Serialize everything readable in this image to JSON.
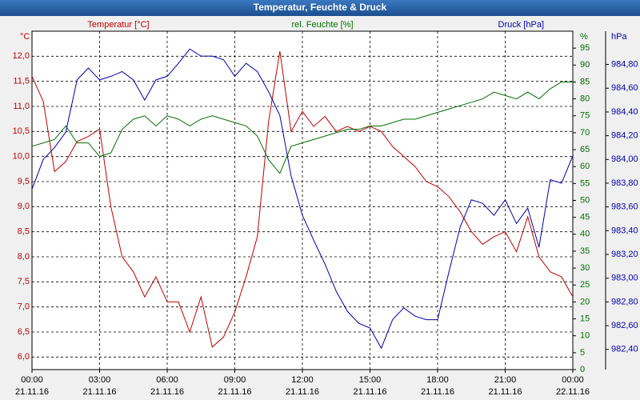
{
  "chart_data": {
    "type": "line",
    "title": "Temperatur, Feuchte & Druck",
    "y_unit": "°C",
    "y2_unit": "%",
    "y3_unit": "hPa",
    "x": [
      0,
      0.5,
      1,
      1.5,
      2,
      2.5,
      3,
      3.5,
      4,
      4.5,
      5,
      5.5,
      6,
      6.5,
      7,
      7.5,
      8,
      8.5,
      9,
      9.5,
      10,
      10.5,
      11,
      11.5,
      12,
      12.5,
      13,
      13.5,
      14,
      14.5,
      15,
      15.5,
      16,
      16.5,
      17,
      17.5,
      18,
      18.5,
      19,
      19.5,
      20,
      20.5,
      21,
      21.5,
      22,
      22.5,
      23,
      23.5,
      24
    ],
    "xlim": [
      0,
      24
    ],
    "xticks": [
      {
        "value": 0,
        "label": "00:00"
      },
      {
        "value": 3,
        "label": "03:00"
      },
      {
        "value": 6,
        "label": "06:00"
      },
      {
        "value": 9,
        "label": "09:00"
      },
      {
        "value": 12,
        "label": "12:00"
      },
      {
        "value": 15,
        "label": "15:00"
      },
      {
        "value": 18,
        "label": "18:00"
      },
      {
        "value": 21,
        "label": "21:00"
      },
      {
        "value": 24,
        "label": "00:00"
      }
    ],
    "xtick_dates": [
      "21.11.16",
      "21.11.16",
      "21.11.16",
      "21.11.16",
      "21.11.16",
      "21.11.16",
      "21.11.16",
      "21.11.16",
      "22.11.16"
    ],
    "ylim": [
      5.75,
      12.5
    ],
    "yticks": [
      {
        "value": 6,
        "label": "6,0"
      },
      {
        "value": 6.5,
        "label": "6,5"
      },
      {
        "value": 7,
        "label": "7,0"
      },
      {
        "value": 7.5,
        "label": "7,5"
      },
      {
        "value": 8,
        "label": "8,0"
      },
      {
        "value": 8.5,
        "label": "8,5"
      },
      {
        "value": 9,
        "label": "9,0"
      },
      {
        "value": 9.5,
        "label": "9,5"
      },
      {
        "value": 10,
        "label": "10,0"
      },
      {
        "value": 10.5,
        "label": "10,5"
      },
      {
        "value": 11,
        "label": "11,0"
      },
      {
        "value": 11.5,
        "label": "11,5"
      },
      {
        "value": 12,
        "label": "12,0"
      }
    ],
    "y2lim": [
      0,
      100
    ],
    "y2ticks": [
      0,
      5,
      10,
      15,
      20,
      25,
      30,
      35,
      40,
      45,
      50,
      55,
      60,
      65,
      70,
      75,
      80,
      85,
      90,
      95
    ],
    "y3lim": [
      982.23,
      985.08
    ],
    "y3ticks": [
      {
        "value": 982.4,
        "label": "982,40"
      },
      {
        "value": 982.6,
        "label": "982,60"
      },
      {
        "value": 982.8,
        "label": "982,80"
      },
      {
        "value": 983.0,
        "label": "983,00"
      },
      {
        "value": 983.2,
        "label": "983,20"
      },
      {
        "value": 983.4,
        "label": "983,40"
      },
      {
        "value": 983.6,
        "label": "983,60"
      },
      {
        "value": 983.8,
        "label": "983,80"
      },
      {
        "value": 984.0,
        "label": "984,00"
      },
      {
        "value": 984.2,
        "label": "984,20"
      },
      {
        "value": 984.4,
        "label": "984,40"
      },
      {
        "value": 984.6,
        "label": "984,60"
      },
      {
        "value": 984.8,
        "label": "984,80"
      }
    ],
    "grid": true,
    "series": [
      {
        "name": "Temperatur [°C]",
        "color": "#c00000",
        "axis": "y",
        "values": [
          11.6,
          11.1,
          9.7,
          9.9,
          10.3,
          10.4,
          10.55,
          9.0,
          8.0,
          7.7,
          7.2,
          7.6,
          7.1,
          7.1,
          6.5,
          7.2,
          6.2,
          6.4,
          6.9,
          7.6,
          8.4,
          10.7,
          12.1,
          10.5,
          10.9,
          10.6,
          10.8,
          10.5,
          10.6,
          10.5,
          10.6,
          10.5,
          10.2,
          10.0,
          9.8,
          9.5,
          9.4,
          9.2,
          8.9,
          8.5,
          8.25,
          8.4,
          8.5,
          8.1,
          8.8,
          8.0,
          7.7,
          7.6,
          7.2
        ]
      },
      {
        "name": "rel. Feuchte [%]",
        "color": "#007000",
        "axis": "y2",
        "values": [
          66,
          67,
          68,
          72,
          67,
          67,
          63,
          64,
          71,
          74,
          75,
          72,
          75,
          74,
          72,
          74,
          75,
          74,
          73,
          72,
          69,
          62,
          58,
          66,
          67,
          68,
          69,
          70,
          71,
          71,
          72,
          72,
          73,
          74,
          74,
          75,
          76,
          77,
          78,
          79,
          80,
          82,
          81,
          80,
          82,
          80,
          83,
          85,
          85
        ]
      },
      {
        "name": "Druck [hPa]",
        "color": "#0000b0",
        "axis": "y3",
        "values": [
          983.75,
          984.0,
          984.1,
          984.23,
          984.67,
          984.77,
          984.67,
          984.7,
          984.74,
          984.67,
          984.5,
          984.67,
          984.7,
          984.81,
          984.93,
          984.87,
          984.87,
          984.84,
          984.7,
          984.81,
          984.74,
          984.57,
          984.37,
          983.86,
          983.53,
          983.32,
          983.12,
          982.89,
          982.72,
          982.62,
          982.58,
          982.41,
          982.65,
          982.75,
          982.68,
          982.65,
          982.65,
          983.05,
          983.43,
          983.66,
          983.63,
          983.53,
          983.66,
          983.46,
          983.59,
          983.26,
          983.83,
          983.8,
          984.03
        ]
      }
    ]
  }
}
